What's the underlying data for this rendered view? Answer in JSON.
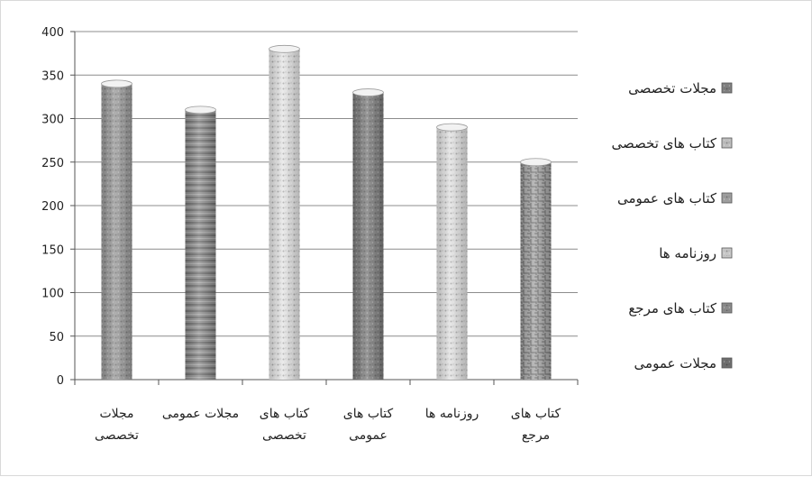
{
  "chart_data": {
    "type": "bar",
    "title": "",
    "xlabel": "",
    "ylabel": "",
    "ylim": [
      0,
      400
    ],
    "yticks": [
      0,
      50,
      100,
      150,
      200,
      250,
      300,
      350,
      400
    ],
    "grid": true,
    "legend_position": "right",
    "categories": [
      {
        "lines": [
          "مجلات",
          "تخصصی"
        ]
      },
      {
        "lines": [
          "مجلات عمومی"
        ]
      },
      {
        "lines": [
          "کتاب های",
          "تخصصی"
        ]
      },
      {
        "lines": [
          "کتاب های",
          "عمومی"
        ]
      },
      {
        "lines": [
          "روزنامه ها"
        ]
      },
      {
        "lines": [
          "کتاب های",
          "مرجع"
        ]
      }
    ],
    "values": [
      340,
      310,
      380,
      330,
      290,
      250
    ],
    "bar_colors": [
      "#9a9a9a",
      "#8d8d8d",
      "#e6e6e6",
      "#7d7d7d",
      "#e2e2e2",
      "#a7a7a7"
    ],
    "legend": [
      {
        "label": "مجلات تخصصی",
        "color": "#7f7f7f"
      },
      {
        "label": "کتاب های تخصصی",
        "color": "#bdbdbd"
      },
      {
        "label": "کتاب های عمومی",
        "color": "#9e9e9e"
      },
      {
        "label": "روزنامه ها",
        "color": "#c7c7c7"
      },
      {
        "label": "کتاب های مرجع",
        "color": "#8a8a8a"
      },
      {
        "label": "مجلات عمومی",
        "color": "#6e6e6e"
      }
    ]
  }
}
